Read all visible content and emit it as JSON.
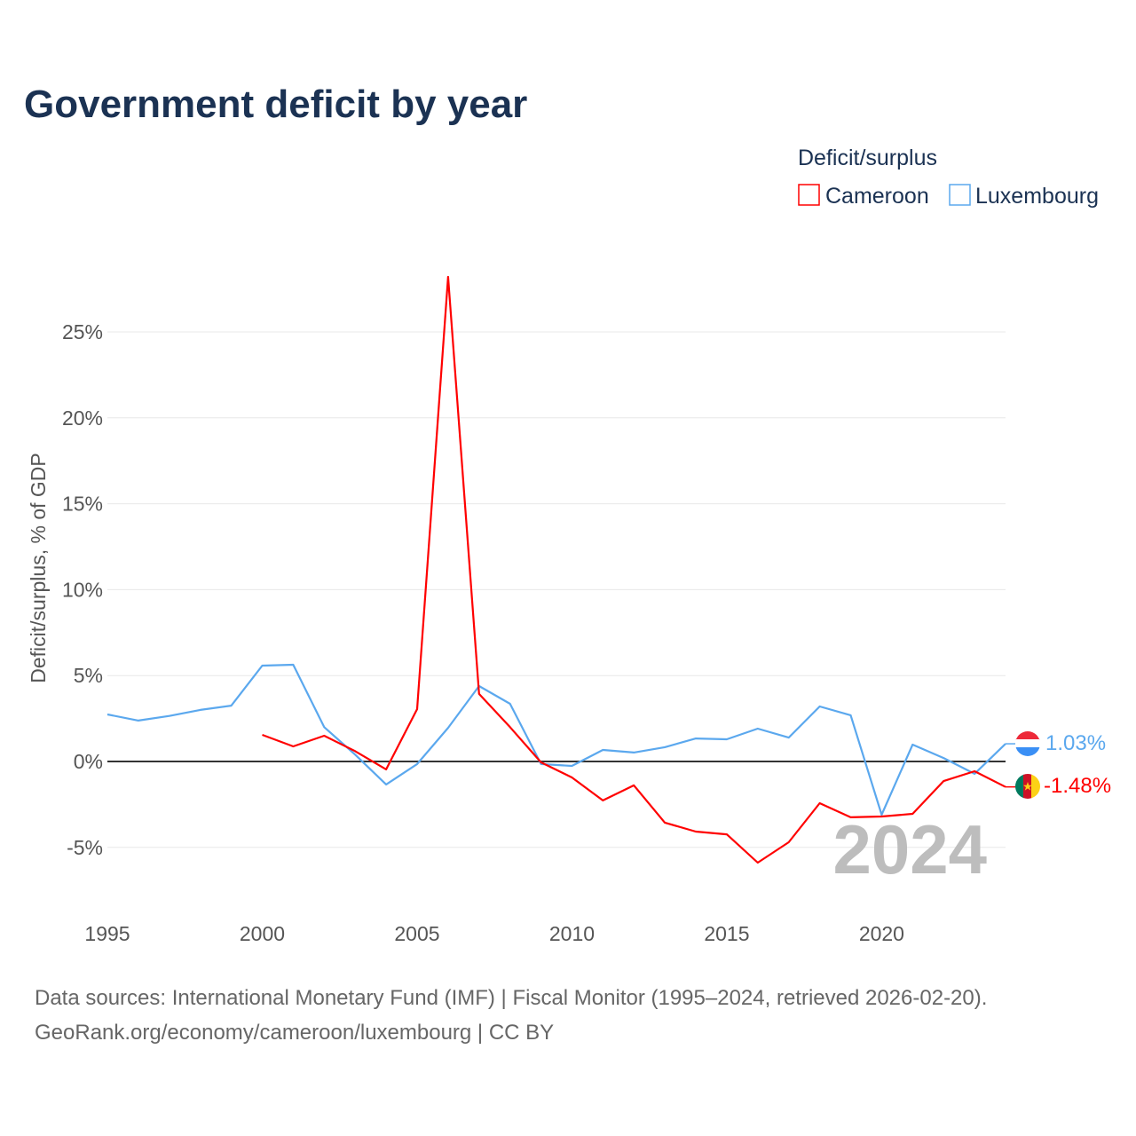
{
  "chart_data": {
    "type": "line",
    "title": "Government deficit by year",
    "ylabel": "Deficit/surplus, % of GDP",
    "xlabel": "",
    "xlim": [
      1995,
      2024
    ],
    "ylim": [
      -8.5,
      28.5
    ],
    "x_ticks": [
      "1995",
      "2000",
      "2005",
      "2010",
      "2015",
      "2020"
    ],
    "x_tick_values": [
      1995,
      2000,
      2005,
      2010,
      2015,
      2020
    ],
    "y_ticks": [
      "-5%",
      "0%",
      "5%",
      "10%",
      "15%",
      "20%",
      "25%"
    ],
    "y_tick_values": [
      -5,
      0,
      5,
      10,
      15,
      20,
      25
    ],
    "grid": true,
    "legend": {
      "title": "Deficit/surplus",
      "placement": "top-right"
    },
    "year_watermark": "2024",
    "series": [
      {
        "name": "Cameroon",
        "color": "#ff0000",
        "end_label": "-1.48%",
        "x": [
          2000,
          2001,
          2002,
          2003,
          2004,
          2005,
          2006,
          2007,
          2008,
          2009,
          2010,
          2011,
          2012,
          2013,
          2014,
          2015,
          2016,
          2017,
          2018,
          2019,
          2020,
          2021,
          2022,
          2023,
          2024
        ],
        "values": [
          1.55,
          0.88,
          1.5,
          0.6,
          -0.46,
          3.05,
          28.2,
          3.93,
          2.0,
          -0.05,
          -0.93,
          -2.27,
          -1.39,
          -3.56,
          -4.08,
          -4.24,
          -5.89,
          -4.7,
          -2.43,
          -3.25,
          -3.2,
          -3.05,
          -1.14,
          -0.57,
          -1.48
        ]
      },
      {
        "name": "Luxembourg",
        "color": "#5ba8ee",
        "end_label": "1.03%",
        "x": [
          1995,
          1996,
          1997,
          1998,
          1999,
          2000,
          2001,
          2002,
          2003,
          2004,
          2005,
          2006,
          2007,
          2008,
          2009,
          2010,
          2011,
          2012,
          2013,
          2014,
          2015,
          2016,
          2017,
          2018,
          2019,
          2020,
          2021,
          2022,
          2023,
          2024
        ],
        "values": [
          2.74,
          2.38,
          2.65,
          3.0,
          3.25,
          5.58,
          5.63,
          2.0,
          0.4,
          -1.34,
          -0.15,
          1.96,
          4.39,
          3.36,
          -0.15,
          -0.26,
          0.67,
          0.52,
          0.83,
          1.34,
          1.29,
          1.91,
          1.39,
          3.2,
          2.69,
          -3.1,
          0.98,
          0.2,
          -0.72,
          1.03
        ]
      }
    ]
  },
  "source": {
    "line1": "Data sources: International Monetary Fund (IMF) | Fiscal Monitor (1995–2024, retrieved 2026-02-20).",
    "line2": "GeoRank.org/economy/cameroon/luxembourg | CC BY"
  }
}
